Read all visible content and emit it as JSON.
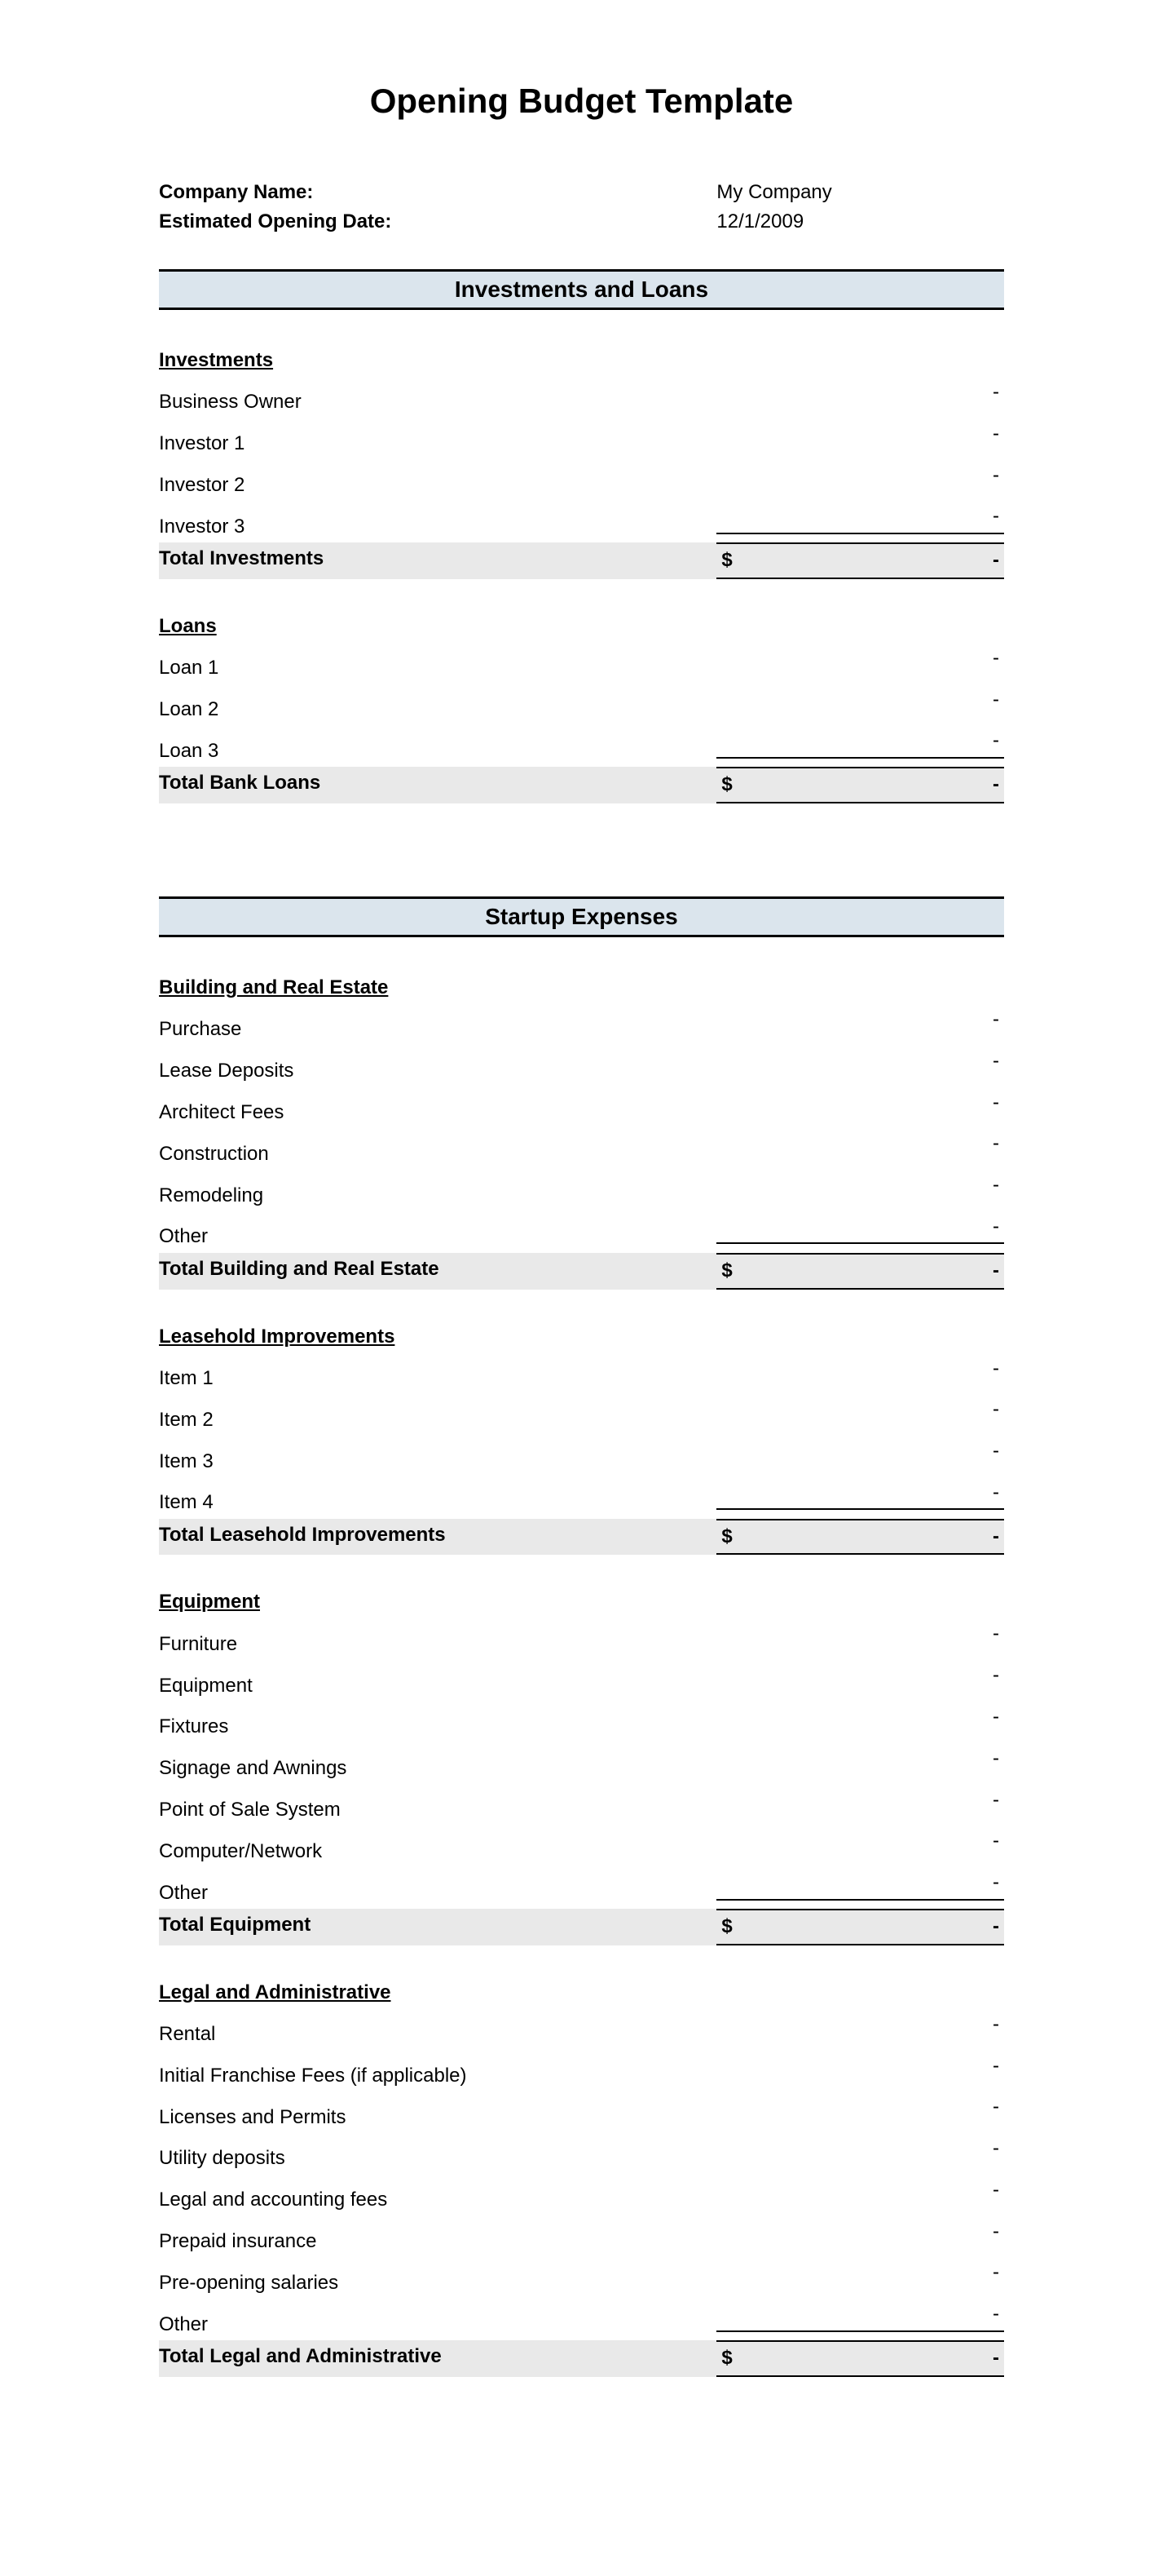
{
  "title": "Opening Budget Template",
  "meta": {
    "company_label": "Company Name:",
    "company_value": "My Company",
    "date_label": "Estimated Opening Date:",
    "date_value": "12/1/2009"
  },
  "currency_symbol": "$",
  "dash": "-",
  "colors": {
    "section_header_bg": "#dbe5ed",
    "total_row_bg": "#e9e9e9",
    "border": "#000000",
    "text": "#000000",
    "background": "#ffffff"
  },
  "typography": {
    "title_fontsize": 42,
    "section_header_fontsize": 28,
    "body_fontsize": 24,
    "font_family": "Arial"
  },
  "sections": [
    {
      "header": "Investments and Loans",
      "groups": [
        {
          "subheader": "Investments",
          "rows": [
            {
              "label": "Business Owner",
              "value": "-"
            },
            {
              "label": "Investor 1",
              "value": "-"
            },
            {
              "label": "Investor 2",
              "value": "-"
            },
            {
              "label": "Investor 3",
              "value": "-"
            }
          ],
          "total_label": "Total Investments",
          "total_value": "-"
        },
        {
          "subheader": "Loans",
          "rows": [
            {
              "label": "Loan 1",
              "value": "-"
            },
            {
              "label": "Loan 2",
              "value": "-"
            },
            {
              "label": "Loan 3",
              "value": "-"
            }
          ],
          "total_label": "Total Bank Loans",
          "total_value": "-"
        }
      ]
    },
    {
      "header": "Startup Expenses",
      "groups": [
        {
          "subheader": "Building and Real Estate",
          "rows": [
            {
              "label": "Purchase",
              "value": "-"
            },
            {
              "label": "Lease Deposits",
              "value": "-"
            },
            {
              "label": "Architect Fees",
              "value": "-"
            },
            {
              "label": "Construction",
              "value": "-"
            },
            {
              "label": "Remodeling",
              "value": "-"
            },
            {
              "label": "Other",
              "value": "-"
            }
          ],
          "total_label": "Total Building and Real Estate",
          "total_value": "-"
        },
        {
          "subheader": "Leasehold Improvements",
          "rows": [
            {
              "label": "Item 1",
              "value": "-"
            },
            {
              "label": "Item 2",
              "value": "-"
            },
            {
              "label": "Item 3",
              "value": "-"
            },
            {
              "label": "Item 4",
              "value": "-"
            }
          ],
          "total_label": "Total Leasehold Improvements",
          "total_value": "-"
        },
        {
          "subheader": "Equipment",
          "rows": [
            {
              "label": "Furniture",
              "value": "-"
            },
            {
              "label": "Equipment",
              "value": "-"
            },
            {
              "label": "Fixtures",
              "value": "-"
            },
            {
              "label": "Signage and Awnings",
              "value": "-"
            },
            {
              "label": "Point of Sale System",
              "value": "-"
            },
            {
              "label": "Computer/Network",
              "value": "-"
            },
            {
              "label": "Other",
              "value": "-"
            }
          ],
          "total_label": "Total Equipment",
          "total_value": "-"
        },
        {
          "subheader": "Legal and Administrative",
          "rows": [
            {
              "label": "Rental",
              "value": "-"
            },
            {
              "label": "Initial Franchise Fees (if applicable)",
              "value": "-"
            },
            {
              "label": "Licenses and Permits",
              "value": "-"
            },
            {
              "label": "Utility deposits",
              "value": "-"
            },
            {
              "label": "Legal and accounting fees",
              "value": "-"
            },
            {
              "label": "Prepaid insurance",
              "value": "-"
            },
            {
              "label": "Pre-opening salaries",
              "value": "-"
            },
            {
              "label": "Other",
              "value": "-"
            }
          ],
          "total_label": "Total Legal and Administrative",
          "total_value": "-"
        }
      ]
    }
  ]
}
